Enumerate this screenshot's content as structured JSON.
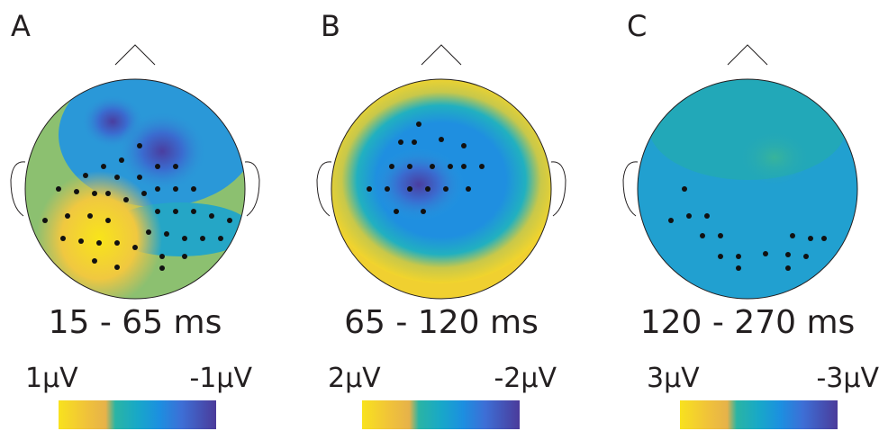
{
  "panels": [
    {
      "letter": "A",
      "time": "15 - 65 ms",
      "scale_max": "1µV",
      "scale_min": "-1µV"
    },
    {
      "letter": "B",
      "time": "65 - 120 ms",
      "scale_max": "2µV",
      "scale_min": "-2µV"
    },
    {
      "letter": "C",
      "time": "120 - 270 ms",
      "scale_max": "3µV",
      "scale_min": "-3µV"
    }
  ]
}
